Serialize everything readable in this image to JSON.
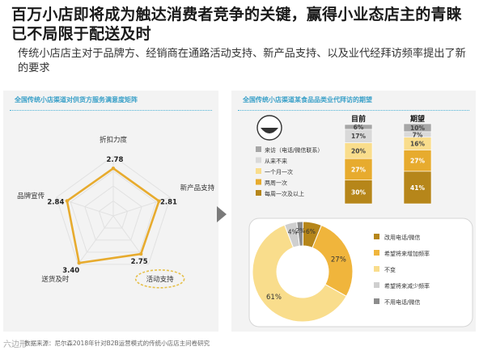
{
  "header": {
    "title": "百万小店即将成为触达消费者竞争的关键，赢得小业态店主的青睐已不局限于配送及时",
    "subtitle": "传统小店店主对于品牌方、经销商在通路活动支持、新产品支持、以及业代经拜访频率提出了新的要求"
  },
  "left_panel": {
    "heading": "全国传统小店渠道对供货方服务满意度矩阵"
  },
  "right_panel": {
    "heading": "全国传统小店渠道某食品品类业代拜访的期望"
  },
  "footer": {
    "watermark": "六边形",
    "source": "数据来源：尼尔森2018年针对B2B运营模式的传统小店店主问卷研究"
  },
  "colors": {
    "gold": "#e7ab2e",
    "dark_gold": "#b6861a",
    "orange": "#f0b53c",
    "light_yellow": "#f9dd8c",
    "pale": "#fbe9b6",
    "grey": "#b9b9b9",
    "highlight_ring": "#e6c04a"
  },
  "chart_data": [
    {
      "type": "radar",
      "title": "全国传统小店渠道对供货方服务满意度矩阵",
      "axes": [
        "折扣力度",
        "新产品支持",
        "活动支持",
        "送货及时",
        "品牌宣传"
      ],
      "values": [
        2.78,
        2.81,
        2.75,
        3.4,
        2.84
      ],
      "value_labels": [
        "2.78",
        "2.81",
        "2.75",
        "3.40",
        "2.84"
      ],
      "highlighted_axis": "活动支持"
    },
    {
      "type": "bar",
      "stacked": true,
      "percent": true,
      "title": "全国传统小店渠道某食品品类业代拜访的期望",
      "categories": [
        "目前",
        "期望"
      ],
      "series": [
        {
          "name": "每周一次及以上",
          "values": [
            30,
            41
          ],
          "labels": [
            "30%",
            "41%"
          ],
          "color": "#b6861a"
        },
        {
          "name": "两周一次",
          "values": [
            27,
            27
          ],
          "labels": [
            "27%",
            "27%"
          ],
          "color": "#e7ab2e"
        },
        {
          "name": "一个月一次",
          "values": [
            20,
            16
          ],
          "labels": [
            "20%",
            "16%"
          ],
          "color": "#f9dd8c"
        },
        {
          "name": "从来不来",
          "values": [
            17,
            7
          ],
          "labels": [
            "17%",
            "7%"
          ],
          "color": "#d9d9d9"
        },
        {
          "name": "来访（电话/微信联系）",
          "values": [
            6,
            10
          ],
          "labels": [
            "6%",
            "10%"
          ],
          "color": "#a6a6a6"
        }
      ],
      "legend_position": "left"
    },
    {
      "type": "pie",
      "donut": true,
      "title": "",
      "slices": [
        {
          "name": "改用电话/微信",
          "value": 6,
          "label": "6%",
          "color": "#b6861a"
        },
        {
          "name": "希望将来增加频率",
          "value": 27,
          "label": "27%",
          "color": "#f0b53c"
        },
        {
          "name": "不变",
          "value": 61,
          "label": "61%",
          "color": "#f9dd8c"
        },
        {
          "name": "希望将来减少频率",
          "value": 4,
          "label": "4%",
          "color": "#cfcfcf"
        },
        {
          "name": "不用电话/微信",
          "value": 2,
          "label": "2%",
          "color": "#8c8c8c"
        }
      ],
      "legend_position": "right"
    }
  ]
}
